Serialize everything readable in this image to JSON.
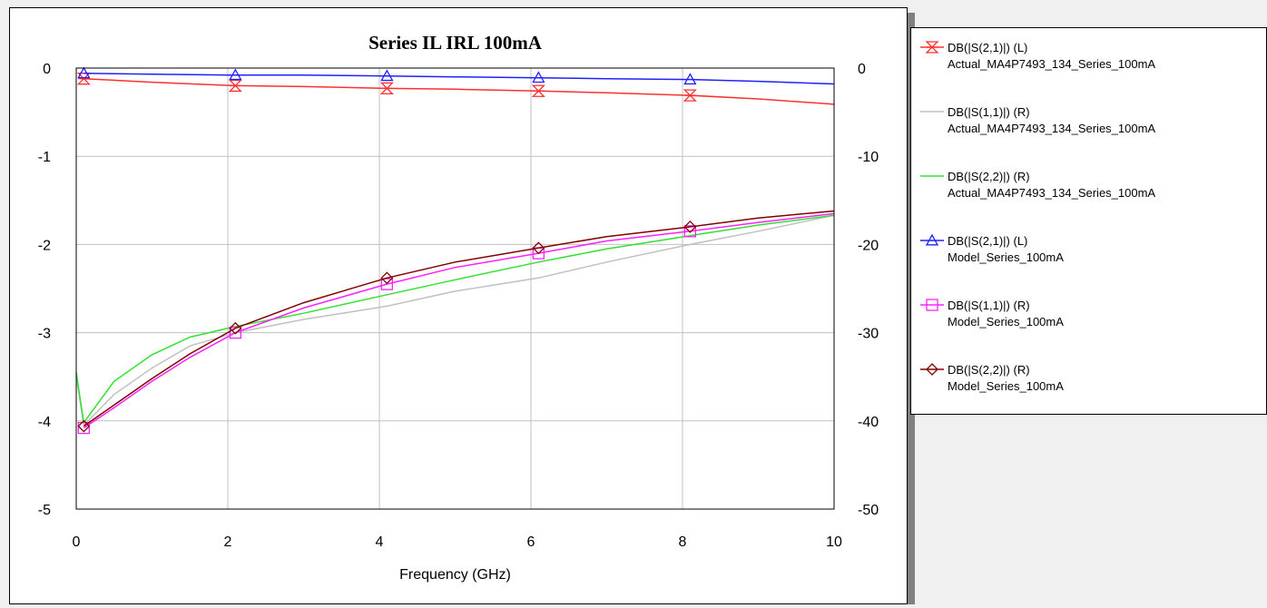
{
  "chart_data": {
    "type": "line",
    "title": "Series IL IRL 100mA",
    "xlabel": "Frequency (GHz)",
    "ylabel_left": "",
    "ylabel_right": "",
    "xlim": [
      0,
      10
    ],
    "ylim_left": [
      -5,
      0
    ],
    "ylim_right": [
      -50,
      0
    ],
    "x_ticks": [
      "0",
      "2",
      "4",
      "6",
      "8",
      "10"
    ],
    "y_left_ticks": [
      "0",
      "-1",
      "-2",
      "-3",
      "-4",
      "-5"
    ],
    "y_right_ticks": [
      "0",
      "-10",
      "-20",
      "-30",
      "-40",
      "-50"
    ],
    "grid": true,
    "legend_position": "right",
    "series": [
      {
        "name": "DB(|S(2,1)|) (L)",
        "source": "Actual_MA4P7493_134_Series_100mA",
        "axis": "left",
        "color": "#ff3030",
        "marker": "hourglass",
        "x": [
          0.1,
          1,
          2.1,
          3,
          4.1,
          5,
          6.1,
          7,
          8.1,
          9,
          10
        ],
        "y": [
          -0.12,
          -0.16,
          -0.2,
          -0.21,
          -0.23,
          -0.24,
          -0.26,
          -0.28,
          -0.31,
          -0.35,
          -0.41
        ]
      },
      {
        "name": "DB(|S(1,1)|) (R)",
        "source": "Actual_MA4P7493_134_Series_100mA",
        "axis": "right",
        "color": "#c0c0c0",
        "marker": "none",
        "x": [
          0,
          0.1,
          0.5,
          1,
          1.5,
          2.1,
          3,
          4.1,
          5,
          6.1,
          7,
          8.1,
          9,
          10
        ],
        "y": [
          -35,
          -40.5,
          -37,
          -34,
          -31.5,
          -30,
          -28.5,
          -27,
          -25.3,
          -23.8,
          -22,
          -20,
          -18.5,
          -16.7
        ]
      },
      {
        "name": "DB(|S(2,2)|) (R)",
        "source": "Actual_MA4P7493_134_Series_100mA",
        "axis": "right",
        "color": "#33e033",
        "marker": "none",
        "x": [
          0,
          0.1,
          0.5,
          1,
          1.5,
          2.1,
          3,
          4.1,
          5,
          6.1,
          7,
          8.1,
          9,
          10
        ],
        "y": [
          -34.5,
          -40.2,
          -35.5,
          -32.5,
          -30.5,
          -29.3,
          -27.8,
          -25.7,
          -24,
          -22,
          -20.5,
          -19,
          -17.8,
          -16.7
        ]
      },
      {
        "name": "DB(|S(2,1)|) (L)",
        "source": "Model_Series_100mA",
        "axis": "left",
        "color": "#2020ff",
        "marker": "triangle",
        "x": [
          0.1,
          1,
          2.1,
          3,
          4.1,
          5,
          6.1,
          7,
          8.1,
          9,
          10
        ],
        "y": [
          -0.06,
          -0.07,
          -0.08,
          -0.08,
          -0.09,
          -0.1,
          -0.11,
          -0.12,
          -0.13,
          -0.15,
          -0.18
        ]
      },
      {
        "name": "DB(|S(1,1)|) (R)",
        "source": "Model_Series_100mA",
        "axis": "right",
        "color": "#ff20ff",
        "marker": "square",
        "x": [
          0.1,
          0.5,
          1,
          1.5,
          2.1,
          3,
          4.1,
          5,
          6.1,
          7,
          8.1,
          9,
          10
        ],
        "y": [
          -40.8,
          -38.5,
          -35.5,
          -32.8,
          -30,
          -27.2,
          -24.5,
          -22.6,
          -21,
          -19.6,
          -18.5,
          -17.5,
          -16.5
        ]
      },
      {
        "name": "DB(|S(2,2)|) (R)",
        "source": "Model_Series_100mA",
        "axis": "right",
        "color": "#800000",
        "marker": "diamond",
        "x": [
          0.1,
          0.5,
          1,
          1.5,
          2.1,
          3,
          4.1,
          5,
          6.1,
          7,
          8.1,
          9,
          10
        ],
        "y": [
          -40.6,
          -38.2,
          -35.2,
          -32.4,
          -29.5,
          -26.6,
          -23.8,
          -22,
          -20.4,
          -19.1,
          -18,
          -17,
          -16.2
        ]
      }
    ]
  }
}
